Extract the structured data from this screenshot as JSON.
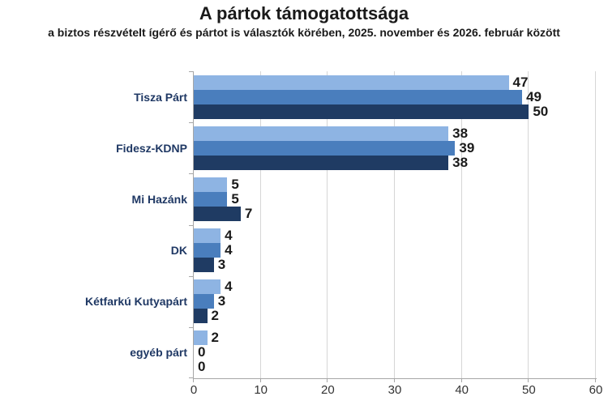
{
  "header": {
    "title": "A pártok támogatottsága",
    "subtitle": "a biztos részvételt ígérő és pártot is választók körében, 2025. november és 2026. február között"
  },
  "chart_data": {
    "type": "bar",
    "orientation": "horizontal",
    "title": "A pártok támogatottsága",
    "subtitle": "a biztos részvételt ígérő és pártot is választók körében, 2025. november és 2026. február között",
    "categories": [
      "Tisza Párt",
      "Fidesz-KDNP",
      "Mi Hazánk",
      "DK",
      "Kétfarkú Kutyapárt",
      "egyéb párt"
    ],
    "series": [
      {
        "name": "series-1",
        "color": "#8eb4e3",
        "values": [
          47,
          38,
          5,
          4,
          4,
          2
        ]
      },
      {
        "name": "series-2",
        "color": "#4a7ebd",
        "values": [
          49,
          39,
          5,
          4,
          3,
          0
        ]
      },
      {
        "name": "series-3",
        "color": "#1f3b63",
        "values": [
          50,
          38,
          7,
          3,
          2,
          0
        ]
      }
    ],
    "xlabel": "",
    "ylabel": "",
    "xlim": [
      0,
      60
    ],
    "x_ticks": [
      0,
      10,
      20,
      30,
      40,
      50,
      60
    ],
    "grid": true,
    "legend": false,
    "value_labels": true
  },
  "colors": {
    "background": "#ffffff",
    "gridline": "#d6d6d6",
    "axis": "#a6a6a6",
    "category_label": "#1f3864",
    "value_label": "#1a1a1a",
    "tick_label": "#333333"
  }
}
